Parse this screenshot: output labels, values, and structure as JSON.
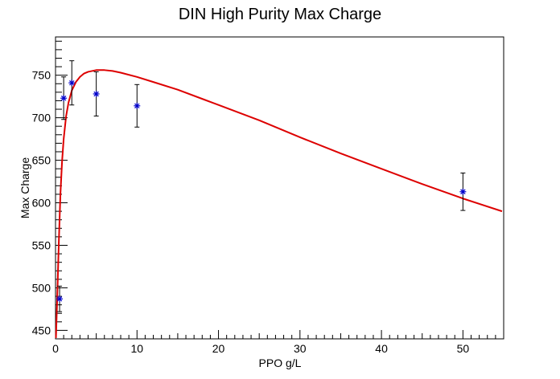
{
  "chart_data": {
    "type": "scatter",
    "title": "DIN High Purity Max Charge",
    "xlabel": "PPO g/L",
    "ylabel": "Max Charge",
    "xlim": [
      0,
      55
    ],
    "ylim": [
      440,
      795
    ],
    "x_ticks": [
      0,
      10,
      20,
      30,
      40,
      50
    ],
    "y_ticks": [
      450,
      500,
      550,
      600,
      650,
      700,
      750
    ],
    "grid": false,
    "series": [
      {
        "kind": "points_with_error",
        "color": "#0000cc",
        "marker": "star",
        "points": [
          {
            "x": 0.5,
            "y": 487,
            "yerr": 15
          },
          {
            "x": 1,
            "y": 723,
            "yerr": 25
          },
          {
            "x": 2,
            "y": 741,
            "yerr": 26
          },
          {
            "x": 5,
            "y": 728,
            "yerr": 26
          },
          {
            "x": 10,
            "y": 714,
            "yerr": 25
          },
          {
            "x": 50,
            "y": 613,
            "yerr": 22
          }
        ]
      },
      {
        "kind": "fit_curve",
        "color": "#dd0000",
        "x": [
          0.05,
          0.2,
          0.4,
          0.6,
          0.8,
          1.0,
          1.3,
          1.6,
          2.0,
          2.5,
          3.0,
          3.5,
          4.0,
          5.0,
          6.0,
          7.0,
          8.0,
          10.0,
          12.0,
          15.0,
          20.0,
          25.0,
          30.0,
          35.0,
          40.0,
          45.0,
          50.0,
          54.8
        ],
        "y": [
          441,
          485,
          552,
          610,
          648,
          675,
          702,
          718,
          732,
          742,
          748,
          752,
          754,
          756,
          756,
          755,
          753,
          748,
          742,
          733,
          715,
          697,
          677,
          658,
          640,
          622,
          605,
          590
        ]
      }
    ]
  }
}
